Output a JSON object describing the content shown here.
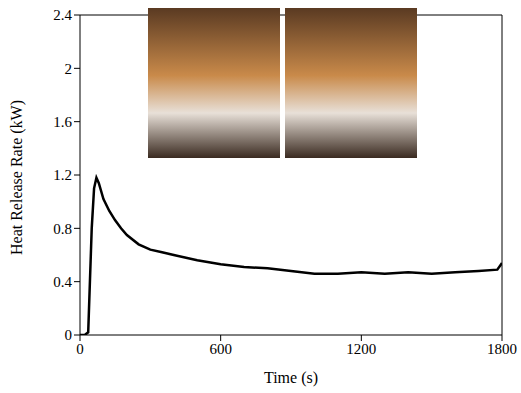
{
  "chart_data": {
    "type": "line",
    "x_label": "Time (s)",
    "y_label": "Heat Release Rate (kW)",
    "x": [
      0,
      20,
      35,
      50,
      60,
      70,
      80,
      100,
      125,
      150,
      175,
      200,
      250,
      300,
      350,
      400,
      500,
      600,
      700,
      800,
      900,
      1000,
      1100,
      1200,
      1300,
      1400,
      1500,
      1600,
      1700,
      1780,
      1800
    ],
    "values": [
      0,
      0,
      0.02,
      0.8,
      1.1,
      1.18,
      1.14,
      1.02,
      0.93,
      0.86,
      0.8,
      0.75,
      0.68,
      0.64,
      0.62,
      0.6,
      0.56,
      0.53,
      0.51,
      0.5,
      0.48,
      0.46,
      0.46,
      0.47,
      0.46,
      0.47,
      0.46,
      0.47,
      0.48,
      0.49,
      0.54
    ],
    "color": "#000000",
    "xlim": [
      0,
      1800
    ],
    "xticks": [
      0,
      600,
      1200,
      1800
    ],
    "ylim": [
      0,
      2.4
    ],
    "yticks": [
      0,
      0.4,
      0.8,
      1.2,
      1.6,
      2,
      2.4
    ],
    "grid": false
  }
}
